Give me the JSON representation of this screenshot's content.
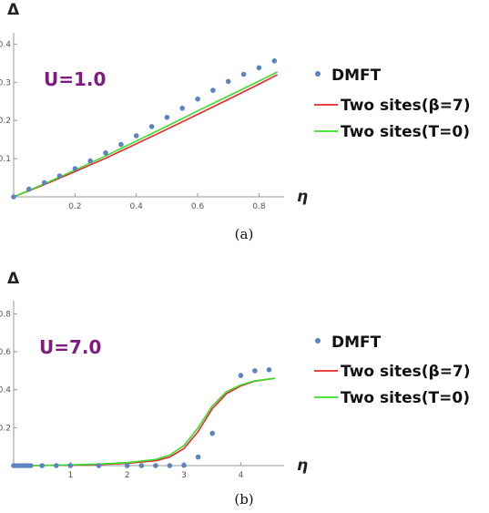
{
  "chart_data": [
    {
      "type": "line",
      "caption": "(a)",
      "annotation": "U=1.0",
      "xlabel": "η",
      "ylabel": "Δ",
      "xlim": [
        0,
        0.87
      ],
      "ylim": [
        0,
        0.42
      ],
      "xticks": [
        "0.2",
        "0.4",
        "0.6",
        "0.8"
      ],
      "xtick_values": [
        0.2,
        0.4,
        0.6,
        0.8
      ],
      "yticks": [
        "0.1",
        "0.2",
        "0.3",
        "0.4"
      ],
      "ytick_values": [
        0.1,
        0.2,
        0.3,
        0.4
      ],
      "legend_position": "right",
      "legend": [
        "DMFT",
        "Two sites(β=7)",
        "Two sites(T=0)"
      ],
      "colors": {
        "dmft": "#5b84c0",
        "beta7": "#e8252b",
        "t0": "#37e028",
        "annotation": "#7d1c7e"
      },
      "series": [
        {
          "name": "DMFT",
          "kind": "scatter",
          "x": [
            0.0,
            0.05,
            0.1,
            0.15,
            0.2,
            0.25,
            0.3,
            0.35,
            0.4,
            0.45,
            0.5,
            0.55,
            0.6,
            0.65,
            0.7,
            0.75,
            0.8,
            0.85
          ],
          "y": [
            0.0,
            0.02,
            0.037,
            0.055,
            0.074,
            0.094,
            0.115,
            0.137,
            0.16,
            0.184,
            0.208,
            0.232,
            0.256,
            0.279,
            0.302,
            0.321,
            0.338,
            0.356
          ]
        },
        {
          "name": "Two sites(β=7)",
          "kind": "line",
          "x": [
            0.0,
            0.1,
            0.2,
            0.3,
            0.4,
            0.5,
            0.6,
            0.7,
            0.8,
            0.86
          ],
          "y": [
            0.0,
            0.032,
            0.066,
            0.101,
            0.139,
            0.177,
            0.216,
            0.255,
            0.295,
            0.32
          ]
        },
        {
          "name": "Two sites(T=0)",
          "kind": "line",
          "x": [
            0.0,
            0.1,
            0.2,
            0.3,
            0.4,
            0.5,
            0.6,
            0.7,
            0.8,
            0.86
          ],
          "y": [
            0.0,
            0.034,
            0.07,
            0.107,
            0.146,
            0.185,
            0.225,
            0.264,
            0.303,
            0.327
          ]
        }
      ]
    },
    {
      "type": "line",
      "caption": "(b)",
      "annotation": "U=7.0",
      "xlabel": "η",
      "ylabel": "Δ",
      "xlim": [
        0,
        4.7
      ],
      "ylim": [
        0,
        0.85
      ],
      "xticks": [
        "1",
        "2",
        "3",
        "4"
      ],
      "xtick_values": [
        1,
        2,
        3,
        4
      ],
      "yticks": [
        "0.2",
        "0.4",
        "0.6",
        "0.8"
      ],
      "ytick_values": [
        0.2,
        0.4,
        0.6,
        0.8
      ],
      "legend_position": "right",
      "legend": [
        "DMFT",
        "Two sites(β=7)",
        "Two sites(T=0)"
      ],
      "colors": {
        "dmft": "#5b84c0",
        "beta7": "#e8252b",
        "t0": "#37e028",
        "annotation": "#7d1c7e"
      },
      "series": [
        {
          "name": "DMFT",
          "kind": "scatter",
          "x": [
            0.0,
            0.05,
            0.1,
            0.15,
            0.2,
            0.25,
            0.3,
            0.5,
            0.75,
            1.0,
            1.5,
            2.0,
            2.25,
            2.5,
            2.75,
            3.0,
            3.25,
            3.5,
            4.0,
            4.25,
            4.5
          ],
          "y": [
            0.0,
            0.0,
            0.0,
            0.0,
            0.0,
            0.0,
            0.0,
            0.0,
            0.0,
            0.0,
            0.0,
            0.0,
            0.0,
            0.0,
            0.0,
            0.002,
            0.045,
            0.17,
            0.475,
            0.5,
            0.505
          ]
        },
        {
          "name": "Two sites(β=7)",
          "kind": "line",
          "x": [
            0.0,
            0.5,
            1.0,
            1.5,
            2.0,
            2.5,
            2.75,
            3.0,
            3.25,
            3.5,
            3.75,
            4.0,
            4.25,
            4.6
          ],
          "y": [
            0.0,
            0.001,
            0.003,
            0.006,
            0.012,
            0.026,
            0.045,
            0.09,
            0.18,
            0.3,
            0.38,
            0.42,
            0.445,
            0.46
          ]
        },
        {
          "name": "Two sites(T=0)",
          "kind": "line",
          "x": [
            0.0,
            0.5,
            1.0,
            1.5,
            2.0,
            2.5,
            2.75,
            3.0,
            3.25,
            3.5,
            3.75,
            4.0,
            4.25,
            4.6
          ],
          "y": [
            0.0,
            0.001,
            0.004,
            0.008,
            0.016,
            0.032,
            0.055,
            0.105,
            0.2,
            0.315,
            0.39,
            0.425,
            0.447,
            0.46
          ]
        }
      ]
    }
  ]
}
